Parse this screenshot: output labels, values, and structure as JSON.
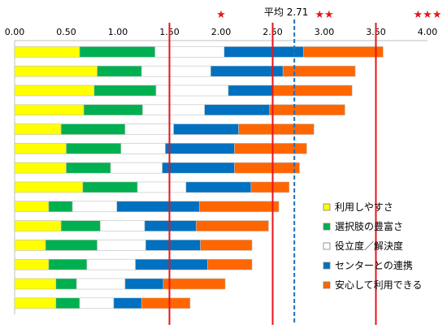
{
  "chart_data": {
    "type": "bar",
    "stacked": true,
    "orientation": "horizontal",
    "xlim": [
      0,
      4
    ],
    "x_ticks": [
      "0.00",
      "0.50",
      "1.00",
      "1.50",
      "2.00",
      "2.50",
      "3.00",
      "3.50",
      "4.00"
    ],
    "categories": [
      "",
      "",
      "",
      "",
      "",
      "",
      "",
      "",
      "",
      "",
      "",
      "",
      "",
      ""
    ],
    "series": [
      {
        "name": "利用しやすさ",
        "color": "#ffff00",
        "values": [
          0.63,
          0.8,
          0.77,
          0.67,
          0.45,
          0.5,
          0.5,
          0.66,
          0.33,
          0.45,
          0.3,
          0.33,
          0.4,
          0.4
        ]
      },
      {
        "name": "選択肢の豊富さ",
        "color": "#00b050",
        "values": [
          0.73,
          0.43,
          0.6,
          0.57,
          0.62,
          0.53,
          0.43,
          0.53,
          0.23,
          0.38,
          0.5,
          0.37,
          0.2,
          0.23
        ]
      },
      {
        "name": "役立度／解決度",
        "color": "#ffffff",
        "values": [
          0.67,
          0.67,
          0.7,
          0.6,
          0.47,
          0.43,
          0.5,
          0.47,
          0.43,
          0.43,
          0.47,
          0.47,
          0.47,
          0.33
        ]
      },
      {
        "name": "センターとの連携",
        "color": "#0070c0",
        "values": [
          0.77,
          0.7,
          0.43,
          0.63,
          0.63,
          0.67,
          0.7,
          0.63,
          0.8,
          0.5,
          0.53,
          0.7,
          0.37,
          0.27
        ]
      },
      {
        "name": "安心して利用できる",
        "color": "#ff6600",
        "values": [
          0.77,
          0.7,
          0.77,
          0.73,
          0.73,
          0.7,
          0.63,
          0.37,
          0.77,
          0.7,
          0.5,
          0.43,
          0.6,
          0.47
        ]
      }
    ],
    "reference_lines": [
      {
        "value": 1.5,
        "color": "#e8141a",
        "style": "solid"
      },
      {
        "value": 2.5,
        "color": "#e8141a",
        "style": "solid"
      },
      {
        "value": 3.5,
        "color": "#e8141a",
        "style": "solid"
      },
      {
        "value": 2.71,
        "color": "#1f6fbf",
        "style": "dashed",
        "label": "平均 2.71"
      }
    ],
    "star_markers": [
      {
        "value": 2.0,
        "text": "★"
      },
      {
        "value": 3.0,
        "text": "★★"
      },
      {
        "value": 4.0,
        "text": "★★★"
      }
    ],
    "grid": false,
    "legend": {
      "position": "bottom-right",
      "items": [
        "利用しやすさ",
        "選択肢の豊富さ",
        "役立度／解決度",
        "センターとの連携",
        "安心して利用できる"
      ]
    }
  }
}
